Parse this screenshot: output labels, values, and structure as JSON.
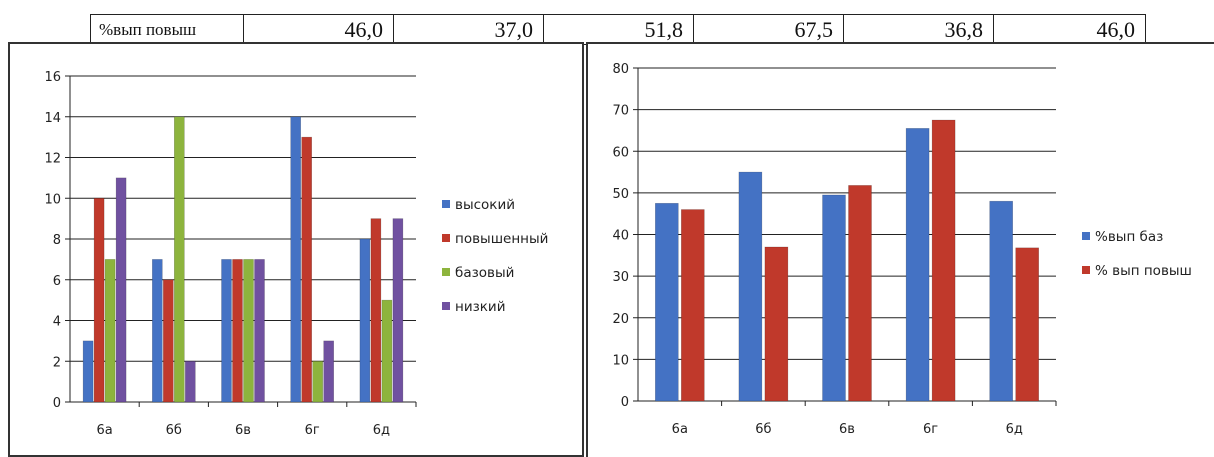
{
  "top_table": {
    "label": "%вып повыш",
    "values": [
      "46,0",
      "37,0",
      "51,8",
      "67,5",
      "36,8",
      "46,0"
    ]
  },
  "chart_data": [
    {
      "type": "bar",
      "categories": [
        "6а",
        "6б",
        "6в",
        "6г",
        "6д"
      ],
      "series": [
        {
          "name": "высокий",
          "color": "#4472C4",
          "values": [
            3,
            7,
            7,
            14,
            8
          ]
        },
        {
          "name": "повышенный",
          "color": "#C0392B",
          "values": [
            10,
            6,
            7,
            13,
            9
          ]
        },
        {
          "name": "базовый",
          "color": "#8DB43D",
          "values": [
            7,
            14,
            7,
            2,
            5
          ]
        },
        {
          "name": "низкий",
          "color": "#7051A0",
          "values": [
            11,
            2,
            7,
            3,
            9
          ]
        }
      ],
      "ylim": [
        0,
        16
      ],
      "yticks": [
        0,
        2,
        4,
        6,
        8,
        10,
        12,
        14,
        16
      ],
      "grid": true,
      "legend": "right"
    },
    {
      "type": "bar",
      "categories": [
        "6а",
        "6б",
        "6в",
        "6г",
        "6д"
      ],
      "series": [
        {
          "name": "%вып баз",
          "color": "#4472C4",
          "values": [
            47.5,
            55,
            49.5,
            65.5,
            48
          ]
        },
        {
          "name": "% вып повыш",
          "color": "#C0392B",
          "values": [
            46,
            37,
            51.8,
            67.5,
            36.8
          ]
        }
      ],
      "ylim": [
        0,
        80
      ],
      "yticks": [
        0,
        10,
        20,
        30,
        40,
        50,
        60,
        70,
        80
      ],
      "grid": true,
      "legend": "right"
    }
  ]
}
